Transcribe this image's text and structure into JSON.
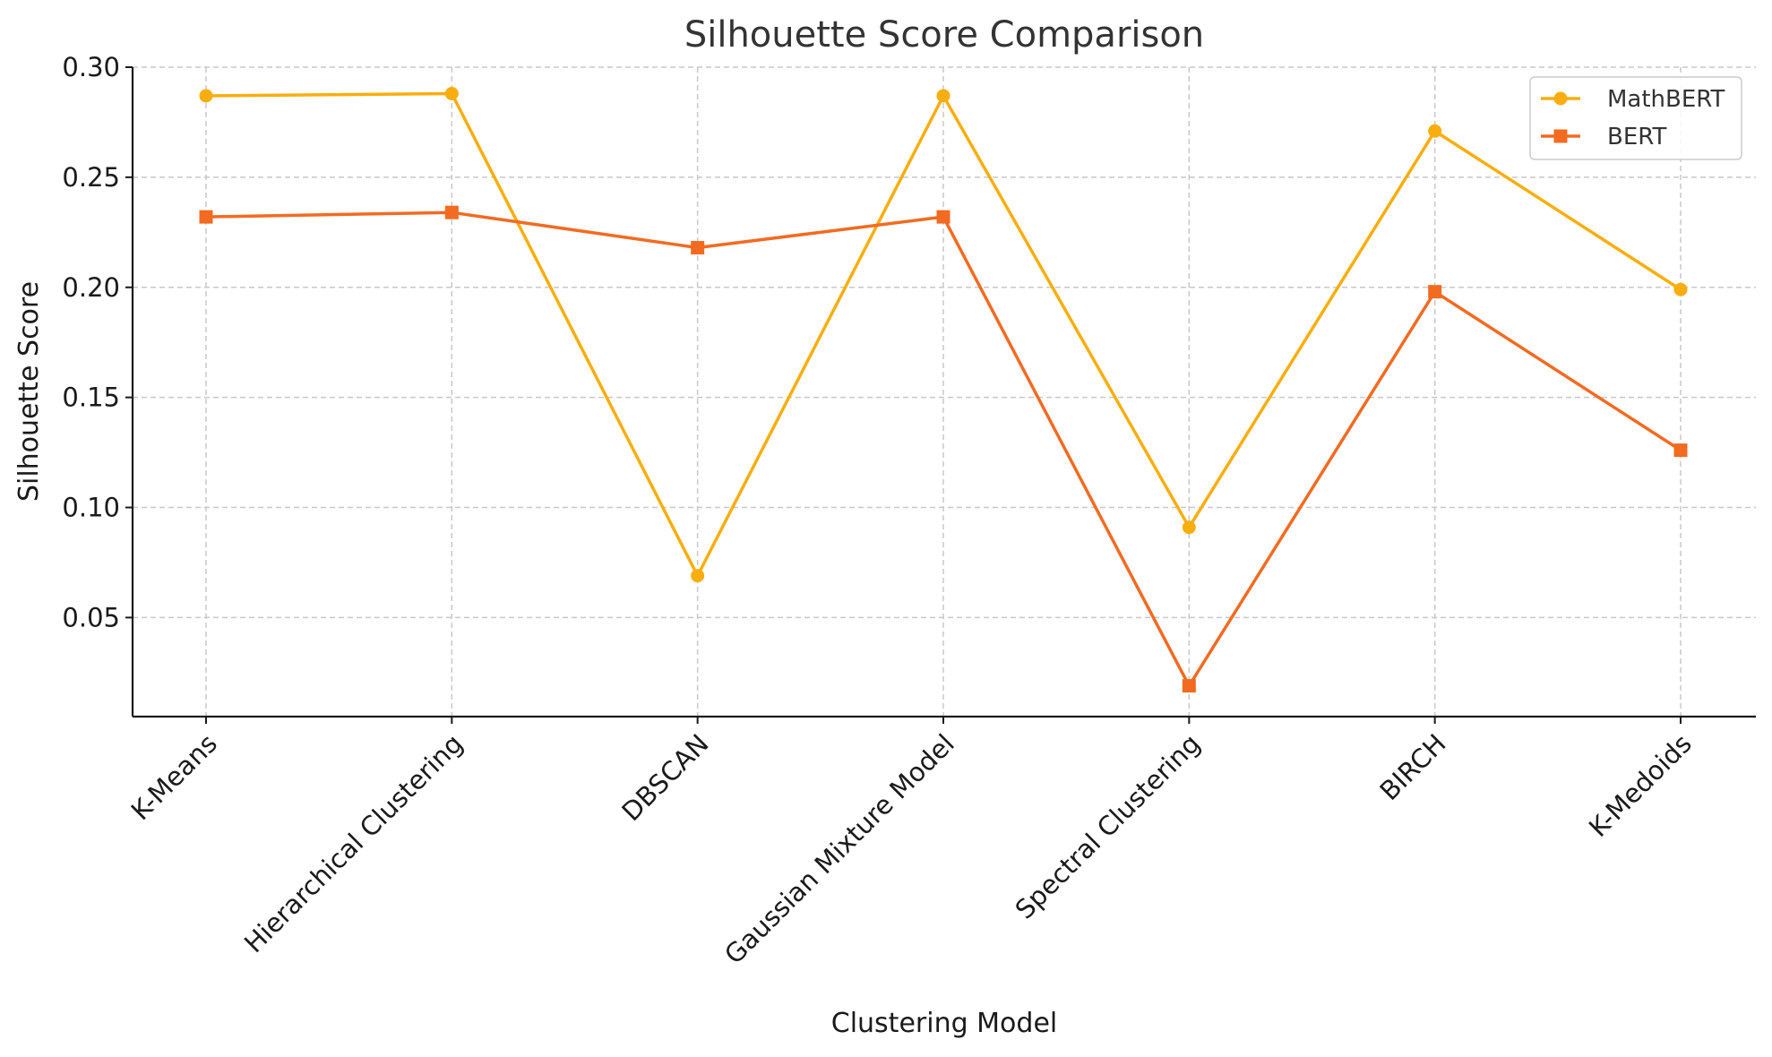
{
  "chart_data": {
    "type": "line",
    "title": "Silhouette Score Comparison",
    "xlabel": "Clustering Model",
    "ylabel": "Silhouette Score",
    "categories": [
      "K-Means",
      "Hierarchical Clustering",
      "DBSCAN",
      "Gaussian Mixture Model",
      "Spectral Clustering",
      "BIRCH",
      "K-Medoids"
    ],
    "series": [
      {
        "name": "MathBERT",
        "color": "#F9AE0E",
        "marker": "circle",
        "values": [
          0.287,
          0.288,
          0.069,
          0.287,
          0.091,
          0.271,
          0.199
        ]
      },
      {
        "name": "BERT",
        "color": "#F26B21",
        "marker": "square",
        "values": [
          0.232,
          0.234,
          0.218,
          0.232,
          0.019,
          0.198,
          0.126
        ]
      }
    ],
    "yticks": [
      "0.05",
      "0.10",
      "0.15",
      "0.20",
      "0.25",
      "0.30"
    ],
    "ylim": [
      0.005,
      0.3
    ],
    "grid": true,
    "legend_position": "top-right"
  }
}
